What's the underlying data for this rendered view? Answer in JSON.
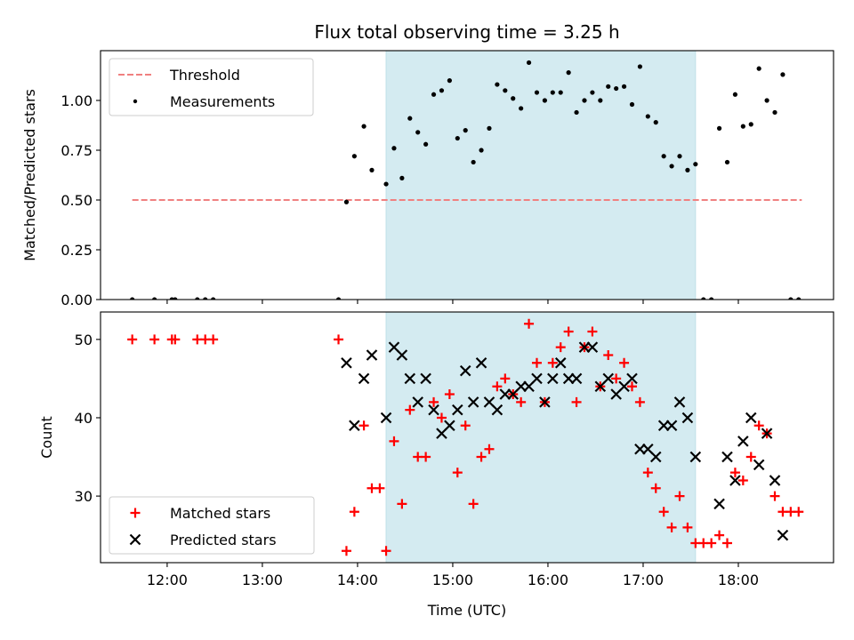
{
  "chart_data": [
    {
      "type": "scatter",
      "title": "Flux total observing time = 3.25 h",
      "ylabel": "Matched/Predicted stars",
      "xlabel": "",
      "xlim": [
        "11:18",
        "19:00"
      ],
      "ylim": [
        0.0,
        1.25
      ],
      "yticks": [
        0.0,
        0.25,
        0.5,
        0.75,
        1.0
      ],
      "ytick_labels": [
        "0.00",
        "0.25",
        "0.50",
        "0.75",
        "1.00"
      ],
      "xticks": [
        "12:00",
        "13:00",
        "14:00",
        "15:00",
        "16:00",
        "17:00",
        "18:00"
      ],
      "grid": false,
      "legend_position": "top-left",
      "legend": [
        "Threshold",
        "Measurements"
      ],
      "highlight_span": {
        "start": "14:18",
        "end": "17:33",
        "color": "#d4ebf1"
      },
      "series": [
        {
          "name": "Threshold",
          "style": "dashed-line",
          "color": "#f08080",
          "x": [
            "11:38",
            "18:40"
          ],
          "values": [
            0.5,
            0.5
          ]
        },
        {
          "name": "Measurements",
          "style": "dot",
          "color": "#000000",
          "x": [
            "11:38",
            "11:52",
            "12:03",
            "12:05",
            "12:19",
            "12:24",
            "12:29",
            "13:48",
            "13:53",
            "13:58",
            "14:04",
            "14:09",
            "14:18",
            "14:23",
            "14:28",
            "14:33",
            "14:38",
            "14:43",
            "14:48",
            "14:53",
            "14:58",
            "15:03",
            "15:08",
            "15:13",
            "15:18",
            "15:23",
            "15:28",
            "15:33",
            "15:38",
            "15:43",
            "15:48",
            "15:53",
            "15:58",
            "16:03",
            "16:08",
            "16:13",
            "16:18",
            "16:23",
            "16:28",
            "16:33",
            "16:38",
            "16:43",
            "16:48",
            "16:53",
            "16:58",
            "17:03",
            "17:08",
            "17:13",
            "17:18",
            "17:23",
            "17:28",
            "17:33",
            "17:38",
            "17:43",
            "17:48",
            "17:53",
            "17:58",
            "18:03",
            "18:08",
            "18:13",
            "18:18",
            "18:23",
            "18:28",
            "18:33",
            "18:38"
          ],
          "values": [
            0,
            0,
            0,
            0,
            0,
            0,
            0,
            0,
            0.49,
            0.72,
            0.87,
            0.65,
            0.58,
            0.76,
            0.61,
            0.91,
            0.84,
            0.78,
            1.03,
            1.05,
            1.1,
            0.81,
            0.85,
            0.69,
            0.75,
            0.86,
            1.08,
            1.05,
            1.01,
            0.96,
            1.19,
            1.04,
            1.0,
            1.04,
            1.04,
            1.14,
            0.94,
            1.0,
            1.04,
            1.0,
            1.07,
            1.06,
            1.07,
            0.98,
            1.17,
            0.92,
            0.89,
            0.72,
            0.67,
            0.72,
            0.65,
            0.68,
            0,
            0,
            0.86,
            0.69,
            1.03,
            0.87,
            0.88,
            1.16,
            1.0,
            0.94,
            1.13,
            0,
            0
          ]
        }
      ]
    },
    {
      "type": "scatter",
      "title": "",
      "ylabel": "Count",
      "xlabel": "Time (UTC)",
      "xlim": [
        "11:18",
        "19:00"
      ],
      "ylim": [
        21.5,
        53.5
      ],
      "yticks": [
        30,
        40,
        50
      ],
      "ytick_labels": [
        "30",
        "40",
        "50"
      ],
      "xticks": [
        "12:00",
        "13:00",
        "14:00",
        "15:00",
        "16:00",
        "17:00",
        "18:00"
      ],
      "grid": false,
      "legend_position": "bottom-left",
      "legend": [
        "Matched stars",
        "Predicted stars"
      ],
      "highlight_span": {
        "start": "14:18",
        "end": "17:33",
        "color": "#d4ebf1"
      },
      "series": [
        {
          "name": "Matched stars",
          "style": "plus",
          "color": "#ff0000",
          "x": [
            "11:38",
            "11:52",
            "12:03",
            "12:05",
            "12:19",
            "12:24",
            "12:29",
            "13:48",
            "13:53",
            "13:58",
            "14:04",
            "14:09",
            "14:14",
            "14:18",
            "14:23",
            "14:28",
            "14:33",
            "14:38",
            "14:43",
            "14:48",
            "14:53",
            "14:58",
            "15:03",
            "15:08",
            "15:13",
            "15:18",
            "15:23",
            "15:28",
            "15:33",
            "15:38",
            "15:43",
            "15:48",
            "15:53",
            "15:58",
            "16:03",
            "16:08",
            "16:13",
            "16:18",
            "16:23",
            "16:28",
            "16:33",
            "16:38",
            "16:43",
            "16:48",
            "16:53",
            "16:58",
            "17:03",
            "17:08",
            "17:13",
            "17:18",
            "17:23",
            "17:28",
            "17:33",
            "17:38",
            "17:43",
            "17:48",
            "17:53",
            "17:58",
            "18:03",
            "18:08",
            "18:13",
            "18:18",
            "18:23",
            "18:28",
            "18:33",
            "18:38"
          ],
          "values": [
            50,
            50,
            50,
            50,
            50,
            50,
            50,
            50,
            23,
            28,
            39,
            31,
            31,
            23,
            37,
            29,
            41,
            35,
            35,
            42,
            40,
            43,
            33,
            39,
            29,
            35,
            36,
            44,
            45,
            43,
            42,
            52,
            47,
            42,
            47,
            49,
            51,
            42,
            49,
            51,
            44,
            48,
            45,
            47,
            44,
            42,
            33,
            31,
            28,
            26,
            30,
            26,
            24,
            24,
            24,
            25,
            24,
            33,
            32,
            35,
            39,
            38,
            30,
            28,
            28,
            28
          ]
        },
        {
          "name": "Predicted stars",
          "style": "x",
          "color": "#000000",
          "x": [
            "13:53",
            "13:58",
            "14:04",
            "14:09",
            "14:18",
            "14:23",
            "14:28",
            "14:33",
            "14:38",
            "14:43",
            "14:48",
            "14:53",
            "14:58",
            "15:03",
            "15:08",
            "15:13",
            "15:18",
            "15:23",
            "15:28",
            "15:33",
            "15:38",
            "15:43",
            "15:48",
            "15:53",
            "15:58",
            "16:03",
            "16:08",
            "16:13",
            "16:18",
            "16:23",
            "16:28",
            "16:33",
            "16:38",
            "16:43",
            "16:48",
            "16:53",
            "16:58",
            "17:03",
            "17:08",
            "17:13",
            "17:18",
            "17:23",
            "17:28",
            "17:33",
            "17:48",
            "17:53",
            "17:58",
            "18:03",
            "18:08",
            "18:13",
            "18:18",
            "18:23",
            "18:28"
          ],
          "values": [
            47,
            39,
            45,
            48,
            40,
            49,
            48,
            45,
            42,
            45,
            41,
            38,
            39,
            41,
            46,
            42,
            47,
            42,
            41,
            43,
            43,
            44,
            44,
            45,
            42,
            45,
            47,
            45,
            45,
            49,
            49,
            44,
            45,
            43,
            44,
            45,
            36,
            36,
            35,
            39,
            39,
            42,
            40,
            35,
            29,
            35,
            32,
            37,
            40,
            34,
            38,
            32,
            25
          ]
        }
      ]
    }
  ]
}
